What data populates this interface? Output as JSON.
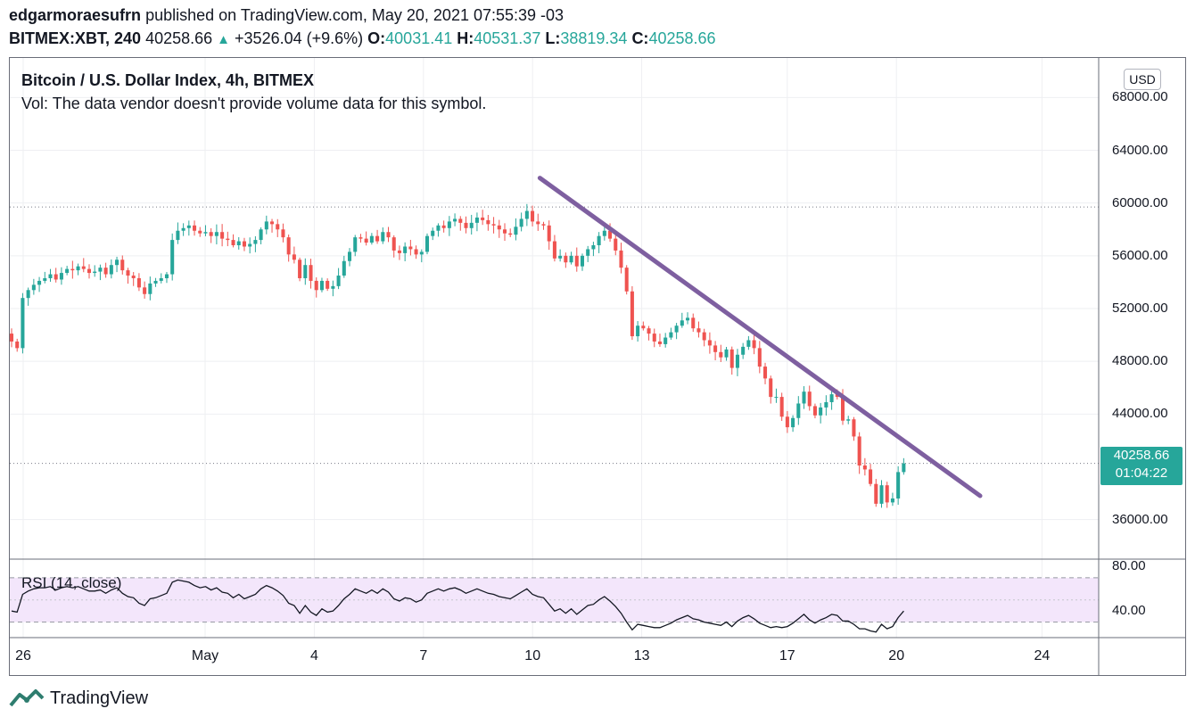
{
  "header": {
    "author": "edgarmoraesufrn",
    "published_text": "published on TradingView.com, May 20, 2021 07:55:39 -03",
    "symbol": "BITMEX:XBT, 240",
    "last": "40258.66",
    "change": "+3526.04 (+9.6%)",
    "o_label": "O:",
    "o_value": "40031.41",
    "h_label": "H:",
    "h_value": "40531.37",
    "l_label": "L:",
    "l_value": "38819.34",
    "c_label": "C:",
    "c_value": "40258.66"
  },
  "legend": {
    "title": "Bitcoin / U.S. Dollar Index, 4h, BITMEX",
    "vol_note": "Vol: The data vendor doesn't provide volume data for this symbol."
  },
  "currency_button": "USD",
  "price_tag": {
    "price": "40258.66",
    "countdown": "01:04:22"
  },
  "rsi_label": "RSI (14, close)",
  "footer": {
    "brand": "TradingView"
  },
  "colors": {
    "up": "#26a69a",
    "down": "#ef5350",
    "trendline": "#7e5fa0",
    "rsi_band": "#f3e6fb",
    "rsi_line": "#131722"
  },
  "chart_data": {
    "type": "candlestick",
    "title": "Bitcoin / U.S. Dollar Index, 4h, BITMEX",
    "ylim": [
      33000,
      71000
    ],
    "y_ticks": [
      "68000.00",
      "64000.00",
      "60000.00",
      "56000.00",
      "52000.00",
      "48000.00",
      "44000.00",
      "36000.00"
    ],
    "x_ticks": [
      {
        "label": "26",
        "day": 0
      },
      {
        "label": "May",
        "day": 5
      },
      {
        "label": "4",
        "day": 8
      },
      {
        "label": "7",
        "day": 11
      },
      {
        "label": "10",
        "day": 14
      },
      {
        "label": "13",
        "day": 17
      },
      {
        "label": "17",
        "day": 21
      },
      {
        "label": "20",
        "day": 24
      },
      {
        "label": "24",
        "day": 28
      }
    ],
    "reference_lines": [
      59700,
      40258.66
    ],
    "trendline": {
      "start": {
        "day": 14.2,
        "price": 61900
      },
      "end": {
        "day": 26.3,
        "price": 37800
      }
    },
    "closes": [
      49500,
      49000,
      52800,
      53400,
      53800,
      54100,
      54300,
      54600,
      54200,
      54700,
      55000,
      54900,
      55200,
      55000,
      54700,
      54800,
      55100,
      54600,
      55300,
      55700,
      54900,
      54500,
      54300,
      53600,
      53100,
      53900,
      54100,
      54300,
      54600,
      57200,
      57900,
      58100,
      58300,
      57900,
      57700,
      57800,
      57500,
      57800,
      57300,
      57200,
      56800,
      57100,
      56700,
      56900,
      57200,
      58000,
      58600,
      58400,
      58000,
      57400,
      56100,
      55700,
      54300,
      55300,
      54100,
      53400,
      54100,
      53500,
      53700,
      54500,
      55600,
      56300,
      57400,
      57300,
      57000,
      57500,
      57100,
      57800,
      57400,
      56400,
      56200,
      56700,
      56500,
      56100,
      56300,
      57500,
      57900,
      58300,
      58100,
      58600,
      58800,
      58500,
      58100,
      58500,
      58900,
      58700,
      58400,
      58300,
      58000,
      57700,
      57600,
      58200,
      58800,
      59400,
      58600,
      58400,
      58300,
      57100,
      55800,
      56000,
      55500,
      56000,
      55200,
      56000,
      56500,
      56800,
      57500,
      57900,
      57300,
      56400,
      55100,
      53300,
      49900,
      50700,
      50500,
      50100,
      49500,
      49300,
      49800,
      50200,
      50700,
      51100,
      51300,
      50500,
      50200,
      49600,
      49200,
      48700,
      48300,
      48900,
      47500,
      48500,
      49100,
      49600,
      49000,
      47600,
      46700,
      45300,
      45300,
      43800,
      43000,
      43700,
      44800,
      45700,
      44600,
      43900,
      44500,
      44900,
      45500,
      45300,
      43500,
      43600,
      42300,
      40100,
      39800,
      38700,
      37200,
      38600,
      37300,
      37600,
      39600,
      40258.66
    ],
    "rsi": [
      40,
      39,
      55,
      58,
      60,
      61,
      61,
      62,
      59,
      61,
      62,
      61,
      62,
      60,
      58,
      58,
      59,
      56,
      59,
      61,
      56,
      53,
      52,
      47,
      45,
      51,
      52,
      54,
      56,
      66,
      68,
      67,
      66,
      63,
      61,
      62,
      59,
      61,
      57,
      56,
      52,
      55,
      51,
      53,
      55,
      60,
      63,
      61,
      58,
      54,
      47,
      45,
      38,
      45,
      39,
      36,
      42,
      39,
      40,
      45,
      51,
      55,
      60,
      58,
      56,
      59,
      56,
      60,
      57,
      51,
      49,
      52,
      51,
      48,
      50,
      56,
      58,
      60,
      58,
      60,
      61,
      59,
      56,
      58,
      60,
      58,
      56,
      55,
      53,
      52,
      51,
      54,
      57,
      60,
      55,
      53,
      52,
      46,
      40,
      42,
      38,
      42,
      37,
      41,
      45,
      46,
      50,
      53,
      49,
      44,
      38,
      30,
      23,
      28,
      27,
      26,
      25,
      25,
      27,
      29,
      32,
      34,
      36,
      33,
      32,
      30,
      29,
      28,
      27,
      30,
      26,
      31,
      34,
      36,
      33,
      29,
      27,
      25,
      26,
      25,
      26,
      29,
      33,
      37,
      32,
      29,
      32,
      34,
      37,
      36,
      31,
      31,
      28,
      24,
      24,
      22,
      21,
      28,
      24,
      26,
      34,
      40
    ],
    "rsi_ylim": [
      16,
      86
    ],
    "rsi_ticks": [
      "80.00",
      "40.00"
    ],
    "rsi_band": [
      30,
      70
    ]
  }
}
